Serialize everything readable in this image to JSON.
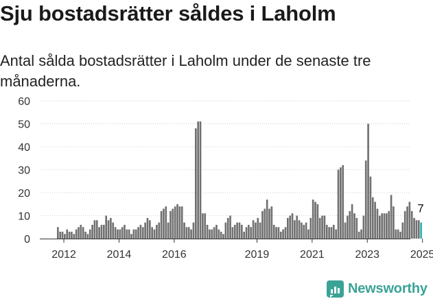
{
  "title": "Sju bostadsrätter såldes i Laholm",
  "subtitle": "Antal sålda bostadsrätter i Laholm under de senaste tre månaderna.",
  "brand": {
    "name": "Newsworthy",
    "icon": "newsworthy-logo-icon",
    "color": "#3aa396"
  },
  "chart_data": {
    "type": "bar",
    "title": "",
    "xlabel": "",
    "ylabel": "",
    "ylim": [
      0,
      60
    ],
    "y_ticks": [
      "0",
      "10",
      "20",
      "30",
      "40",
      "50",
      "60"
    ],
    "x_ticks": [
      "2012",
      "2014",
      "2016",
      "2019",
      "2021",
      "2023",
      "2025"
    ],
    "bar_color": "#707070",
    "highlight_color": "#2bb3b3",
    "grid": true,
    "annotation": {
      "label": "7",
      "target": "last"
    },
    "start_month": "2011-10",
    "values": [
      5,
      3,
      3,
      2,
      4,
      3,
      3,
      2,
      4,
      5,
      6,
      5,
      3,
      2,
      4,
      6,
      8,
      8,
      5,
      6,
      6,
      10,
      8,
      9,
      7,
      5,
      4,
      4,
      5,
      6,
      4,
      4,
      2,
      4,
      4,
      5,
      6,
      5,
      7,
      9,
      8,
      5,
      4,
      6,
      7,
      12,
      13,
      14,
      7,
      12,
      13,
      14,
      15,
      14,
      14,
      7,
      5,
      5,
      4,
      7,
      48,
      51,
      51,
      11,
      11,
      6,
      4,
      4,
      5,
      6,
      4,
      3,
      2,
      7,
      9,
      10,
      5,
      6,
      7,
      7,
      6,
      3,
      5,
      6,
      5,
      8,
      7,
      9,
      7,
      12,
      13,
      17,
      13,
      14,
      6,
      5,
      5,
      3,
      4,
      5,
      9,
      10,
      11,
      8,
      10,
      8,
      7,
      6,
      7,
      4,
      9,
      17,
      16,
      15,
      9,
      10,
      10,
      6,
      5,
      5,
      6,
      4,
      30,
      31,
      32,
      7,
      10,
      12,
      15,
      11,
      9,
      3,
      4,
      10,
      34,
      50,
      27,
      18,
      16,
      13,
      10,
      11,
      11,
      11,
      12,
      19,
      14,
      4,
      4,
      3,
      7,
      12,
      14,
      16,
      12,
      9,
      8,
      8,
      7
    ]
  }
}
